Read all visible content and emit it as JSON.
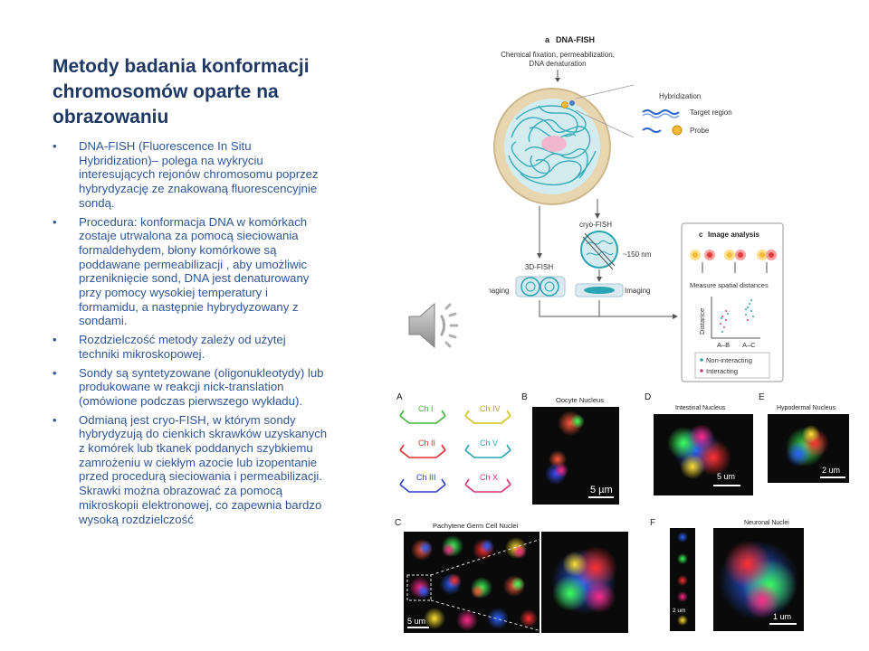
{
  "slide": {
    "title": "Metody badania konformacji chromosomów oparte na obrazowaniu",
    "bullets": [
      "DNA-FISH (Fluorescence In Situ Hybridization)– polega na wykryciu interesujących rejonów chromosomu poprzez hybrydyzację ze znakowaną fluorescencyjnie sondą.",
      "Procedura: konformacja DNA w komórkach zostaje utrwalona za pomocą sieciowania formaldehydem, błony komórkowe są poddawane permeabilizacji , aby umożliwic przeniknięcie sond, DNA jest denaturowany przy pomocy wysokiej temperatury i formamidu, a następnie hybrydyzowany z sondami.",
      "Rozdzielczość metody zależy od użytej techniki mikroskopowej.",
      "Sondy są syntetyzowane (oligonukleotydy) lub produkowane w reakcji nick-translation (omówione podczas pierwszego wykładu).",
      "Odmianą jest cryo-FISH, w którym sondy hybrydyzują do cienkich skrawków uzyskanych z komórek lub tkanek poddanych szybkiemu zamrożeniu w ciekłym azocie lub izopentanie  przed procedurą sieciowania i permeabilizacji. Skrawki można obrazować za pomocą mikroskopii elektronowej, co zapewnia bardzo wysoką rozdzielczość"
    ]
  },
  "diagram": {
    "panel_a": "a",
    "heading": "DNA-FISH",
    "step1": [
      "Chemical fixation, permeabilization,",
      "DNA denaturation"
    ],
    "hybridization": "Hybridization",
    "target_region": "Target region",
    "probe": "Probe",
    "cryo_fish": "cryo-FISH",
    "thickness": "~150 nm",
    "fish3d": "3D-FISH",
    "imaging_left": "Imaging",
    "imaging_right": "Imaging",
    "panel_c": "c",
    "image_analysis": "Image analysis",
    "measure": "Measure spatial distances",
    "distance_axis": "Distance",
    "cat_ab": "A–B",
    "cat_ac": "A–C",
    "legend_non": "Non-interacting",
    "legend_int": "Interacting",
    "colors": {
      "cell": "#e8d6b0",
      "nucleus": "#d2ecef",
      "dna": "#2aa5b3",
      "box": "#9a9a9a"
    }
  },
  "micro": {
    "panel_a": "A",
    "panel_b": "B",
    "panel_c": "C",
    "panel_d": "D",
    "panel_e": "E",
    "panel_f": "F",
    "probes": [
      "Ch I",
      "Ch IV",
      "Ch II",
      "Ch V",
      "Ch III",
      "Ch X"
    ],
    "oocyte": "Oocyte Nucleus",
    "intestinal": "Intestinal Nucleus",
    "hypodermal": "Hypodermal Nucleus",
    "pachytene": "Pachytene Germ Cell Nuclei",
    "neuronal": "Neuronal Nuclei",
    "scale_5um_greek": "5 µm",
    "scale_5um_d": "5 um",
    "scale_2um_e": "2 um",
    "scale_5um_c": "5 um",
    "scale_2um_f": "2 um",
    "scale_1um_f": "1 um"
  }
}
